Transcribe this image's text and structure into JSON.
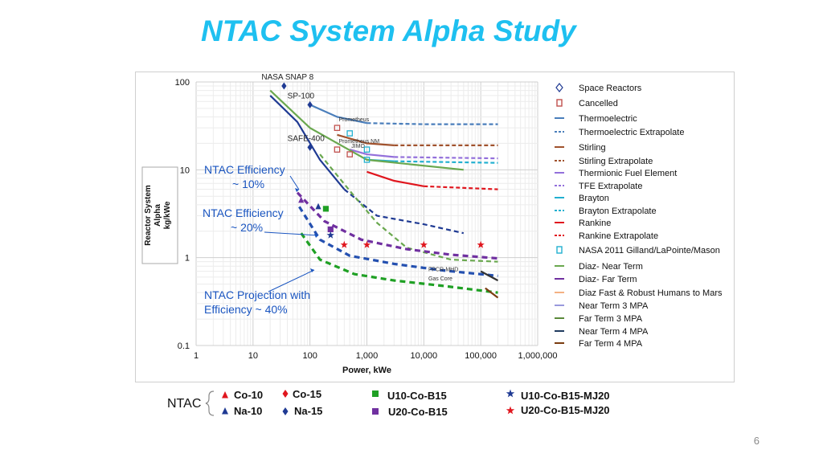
{
  "slide": {
    "title": "NTAC System Alpha Study",
    "page_number": "6"
  },
  "chart_data": {
    "type": "line",
    "title": "",
    "xlabel": "Power, kWe",
    "ylabel": [
      "Reactor System",
      "Alpha",
      "kg/kWe"
    ],
    "x_scale": "log",
    "y_scale": "log",
    "xlim": [
      1,
      1000000
    ],
    "ylim": [
      0.1,
      100
    ],
    "x_ticks": [
      {
        "v": 1,
        "label": "1"
      },
      {
        "v": 10,
        "label": "10"
      },
      {
        "v": 100,
        "label": "100"
      },
      {
        "v": 1000,
        "label": "1,000"
      },
      {
        "v": 10000,
        "label": "10,000"
      },
      {
        "v": 100000,
        "label": "100,000"
      },
      {
        "v": 1000000,
        "label": "1,000,000"
      }
    ],
    "y_ticks": [
      {
        "v": 100,
        "label": "100"
      },
      {
        "v": 10,
        "label": "10"
      },
      {
        "v": 1,
        "label": "1"
      },
      {
        "v": 0.1,
        "label": "0.1"
      }
    ],
    "series": [
      {
        "name": "Thermoelectric",
        "color": "#4a7ebb",
        "dash": "",
        "pts": [
          [
            100,
            55
          ],
          [
            300,
            40
          ],
          [
            1000,
            34
          ]
        ]
      },
      {
        "name": "Thermoelectric Extrapolate",
        "color": "#4a7ebb",
        "dash": "5,3",
        "pts": [
          [
            1000,
            34
          ],
          [
            10000,
            33
          ],
          [
            200000,
            33
          ]
        ]
      },
      {
        "name": "Stirling",
        "color": "#a0522d",
        "dash": "",
        "pts": [
          [
            300,
            25
          ],
          [
            1000,
            20
          ],
          [
            3000,
            19
          ]
        ]
      },
      {
        "name": "Stirling Extrapolate",
        "color": "#a0522d",
        "dash": "5,3",
        "pts": [
          [
            3000,
            19
          ],
          [
            200000,
            19
          ]
        ]
      },
      {
        "name": "Thermionic Fuel Element",
        "color": "#9370db",
        "dash": "",
        "pts": [
          [
            500,
            17
          ],
          [
            1000,
            15
          ],
          [
            3000,
            14
          ]
        ]
      },
      {
        "name": "TFE Extrapolate",
        "color": "#9370db",
        "dash": "5,3",
        "pts": [
          [
            3000,
            14
          ],
          [
            200000,
            13.5
          ]
        ]
      },
      {
        "name": "Brayton",
        "color": "#22b0d0",
        "dash": "",
        "pts": [
          [
            1000,
            13
          ],
          [
            3000,
            12.5
          ]
        ]
      },
      {
        "name": "Brayton Extrapolate",
        "color": "#22b0d0",
        "dash": "5,3",
        "pts": [
          [
            3000,
            12.5
          ],
          [
            200000,
            12
          ]
        ]
      },
      {
        "name": "Rankine",
        "color": "#e0161e",
        "dash": "",
        "pts": [
          [
            1000,
            9.5
          ],
          [
            3000,
            7.5
          ],
          [
            10000,
            6.5
          ]
        ]
      },
      {
        "name": "Rankine Extrapolate",
        "color": "#e0161e",
        "dash": "5,3",
        "pts": [
          [
            10000,
            6.5
          ],
          [
            200000,
            6
          ]
        ]
      },
      {
        "name": "",
        "color": "#6aa84f",
        "dash": "",
        "pts": [
          [
            20,
            80
          ],
          [
            100,
            30
          ],
          [
            1000,
            13
          ],
          [
            50000,
            10
          ]
        ]
      },
      {
        "name": "",
        "color": "#1f3a93",
        "dash": "",
        "pts": [
          [
            20,
            70
          ],
          [
            60,
            35
          ],
          [
            150,
            13
          ],
          [
            400,
            6
          ]
        ]
      },
      {
        "name": "",
        "color": "#1f3a93",
        "dash": "6,4",
        "pts": [
          [
            400,
            6
          ],
          [
            1500,
            3
          ],
          [
            10000,
            2.4
          ],
          [
            50000,
            1.9
          ]
        ]
      },
      {
        "name": "",
        "color": "#6aa84f",
        "dash": "6,4",
        "pts": [
          [
            150,
            15
          ],
          [
            600,
            5
          ],
          [
            1500,
            2.5
          ],
          [
            5000,
            1.3
          ],
          [
            30000,
            0.95
          ],
          [
            200000,
            0.9
          ]
        ]
      },
      {
        "name": "",
        "color": "#2450b0",
        "dash": "7,5",
        "pts": [
          [
            65,
            3.8
          ],
          [
            150,
            1.6
          ],
          [
            500,
            1.05
          ],
          [
            3000,
            0.85
          ],
          [
            20000,
            0.72
          ],
          [
            200000,
            0.62
          ]
        ]
      },
      {
        "name": "",
        "color": "#1fa024",
        "dash": "7,5",
        "pts": [
          [
            70,
            1.9
          ],
          [
            150,
            0.95
          ],
          [
            600,
            0.65
          ],
          [
            3000,
            0.55
          ],
          [
            20000,
            0.48
          ],
          [
            200000,
            0.4
          ]
        ]
      },
      {
        "name": "",
        "color": "#7030a0",
        "dash": "7,5",
        "pts": [
          [
            60,
            5.5
          ],
          [
            180,
            2.6
          ],
          [
            800,
            1.6
          ],
          [
            5000,
            1.25
          ],
          [
            30000,
            1.08
          ],
          [
            200000,
            0.98
          ]
        ]
      },
      {
        "name": "",
        "color": "#333333",
        "dash": "",
        "pts": [
          [
            100000,
            0.7
          ],
          [
            200000,
            0.55
          ]
        ]
      },
      {
        "name": "",
        "color": "#7a3c10",
        "dash": "",
        "pts": [
          [
            120000,
            0.45
          ],
          [
            200000,
            0.35
          ]
        ]
      }
    ],
    "markers": [
      {
        "label": "NASA SNAP 8",
        "shape": "diamond",
        "color": "#1f3a93",
        "x": 35,
        "y": 90
      },
      {
        "label": "SP-100",
        "shape": "diamond",
        "color": "#1f3a93",
        "x": 100,
        "y": 55
      },
      {
        "label": "SAFE-400",
        "shape": "diamond",
        "color": "#1f3a93",
        "x": 100,
        "y": 18
      },
      {
        "label": "Prometheus",
        "shape": "square",
        "color": "#c0504d",
        "x": 300,
        "y": 30
      },
      {
        "label": "Prometheus NM",
        "shape": "square",
        "color": "#c0504d",
        "x": 300,
        "y": 17
      },
      {
        "label": "JIMO",
        "shape": "square",
        "color": "#c0504d",
        "x": 500,
        "y": 15
      },
      {
        "label": "",
        "shape": "square",
        "color": "#22b0d0",
        "x": 500,
        "y": 26
      },
      {
        "label": "",
        "shape": "square",
        "color": "#22b0d0",
        "x": 1000,
        "y": 17
      },
      {
        "label": "",
        "shape": "square",
        "color": "#22b0d0",
        "x": 1000,
        "y": 13
      },
      {
        "label": "",
        "shape": "tri",
        "color": "#1f3a93",
        "x": 140,
        "y": 3.8
      },
      {
        "label": "",
        "shape": "tri",
        "color": "#7030a0",
        "x": 70,
        "y": 4.5
      },
      {
        "label": "",
        "shape": "sq",
        "color": "#1fa024",
        "x": 190,
        "y": 3.6
      },
      {
        "label": "",
        "shape": "sq",
        "color": "#7030a0",
        "x": 230,
        "y": 2.1
      },
      {
        "label": "",
        "shape": "star",
        "color": "#1f3a93",
        "x": 230,
        "y": 1.8
      },
      {
        "label": "",
        "shape": "star",
        "color": "#e0161e",
        "x": 400,
        "y": 1.4
      },
      {
        "label": "",
        "shape": "star",
        "color": "#e0161e",
        "x": 1000,
        "y": 1.4
      },
      {
        "label": "",
        "shape": "star",
        "color": "#e0161e",
        "x": 10000,
        "y": 1.4
      },
      {
        "label": "",
        "shape": "star",
        "color": "#e0161e",
        "x": 100000,
        "y": 1.4
      }
    ],
    "annotations": [
      {
        "text": "FPCR-MHD",
        "x": 12000,
        "y": 0.7
      },
      {
        "text": "Gas Core",
        "x": 12000,
        "y": 0.55
      }
    ],
    "legend": [
      {
        "label": "Space Reactors",
        "kind": "diamond",
        "color": "#1f3a93"
      },
      {
        "label": "Cancelled",
        "kind": "square",
        "color": "#c0504d"
      },
      {
        "label": "Thermoelectric",
        "kind": "line",
        "color": "#4a7ebb"
      },
      {
        "label": "Thermoelectric Extrapolate",
        "kind": "dash",
        "color": "#4a7ebb"
      },
      {
        "label": "Stirling",
        "kind": "line",
        "color": "#a0522d"
      },
      {
        "label": "Stirling Extrapolate",
        "kind": "dash",
        "color": "#a0522d"
      },
      {
        "label": "Thermionic Fuel Element",
        "kind": "line",
        "color": "#9370db"
      },
      {
        "label": "TFE Extrapolate",
        "kind": "dash",
        "color": "#9370db"
      },
      {
        "label": "Brayton",
        "kind": "line",
        "color": "#22b0d0"
      },
      {
        "label": "Brayton Extrapolate",
        "kind": "dash",
        "color": "#22b0d0"
      },
      {
        "label": "Rankine",
        "kind": "line",
        "color": "#e0161e"
      },
      {
        "label": "Rankine Extrapolate",
        "kind": "dash",
        "color": "#e0161e"
      },
      {
        "label": "NASA 2011 Gilland/LaPointe/Mason",
        "kind": "square",
        "color": "#22b0d0"
      },
      {
        "label": "Diaz- Near Term",
        "kind": "line",
        "color": "#6aa84f"
      },
      {
        "label": "Diaz- Far Term",
        "kind": "line",
        "color": "#7030a0"
      },
      {
        "label": "Diaz Fast & Robust Humans to Mars",
        "kind": "line",
        "color": "#f4b183"
      },
      {
        "label": "Near Term 3 MPA",
        "kind": "line",
        "color": "#9999dd"
      },
      {
        "label": "Far Term 3 MPA",
        "kind": "line",
        "color": "#5a8a3a"
      },
      {
        "label": "Near Term 4 MPA",
        "kind": "line",
        "color": "#1f3a5f"
      },
      {
        "label": "Far Term 4 MPA",
        "kind": "line",
        "color": "#7a3c10"
      }
    ]
  },
  "callouts": [
    {
      "lines": [
        "NTAC Efficiency",
        "~ 10%"
      ]
    },
    {
      "lines": [
        "NTAC Efficiency",
        "~ 20%"
      ]
    },
    {
      "lines": [
        "NTAC Projection with",
        "Efficiency ~ 40%"
      ]
    }
  ],
  "ntac_key": {
    "label": "NTAC",
    "items": [
      {
        "label": "Co-10",
        "shape": "tri",
        "color": "#e0161e"
      },
      {
        "label": "Na-10",
        "shape": "tri",
        "color": "#1f3a93"
      },
      {
        "label": "Co-15",
        "shape": "diamond",
        "color": "#e0161e"
      },
      {
        "label": "Na-15",
        "shape": "diamond",
        "color": "#1f3a93"
      },
      {
        "label": "U10-Co-B15",
        "shape": "sq",
        "color": "#1fa024"
      },
      {
        "label": "U20-Co-B15",
        "shape": "sq",
        "color": "#7030a0"
      },
      {
        "label": "U10-Co-B15-MJ20",
        "shape": "star",
        "color": "#1f3a93"
      },
      {
        "label": "U20-Co-B15-MJ20",
        "shape": "star",
        "color": "#e0161e"
      }
    ]
  }
}
